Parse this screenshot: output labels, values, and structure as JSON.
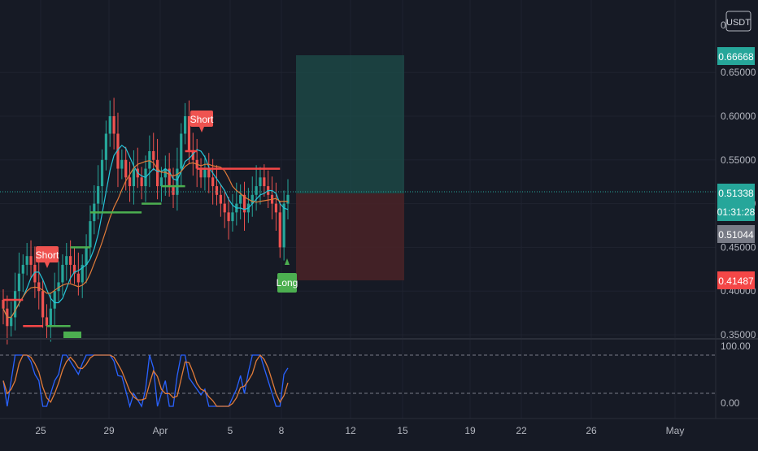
{
  "currency_badge": "USDT",
  "price_axis": {
    "ticks": [
      "0.35000",
      "0.40000",
      "0.45000",
      "0.50000",
      "0.55000",
      "0.60000",
      "0.65000"
    ],
    "top_partial_label": "0"
  },
  "price_badges": {
    "target": "0.66668",
    "current": "0.51338",
    "countdown": "01:31:28",
    "entry": "0.51044",
    "stop": "0.41487"
  },
  "time_axis": {
    "labels": [
      "25",
      "29",
      "Apr",
      "5",
      "8",
      "12",
      "15",
      "19",
      "22",
      "26",
      "May"
    ]
  },
  "oscillator": {
    "labels": [
      "100.00",
      "0.00"
    ],
    "upper_level": 80,
    "lower_level": 20
  },
  "signals": [
    {
      "text": "Short",
      "type": "short"
    },
    {
      "text": "Short",
      "type": "short"
    },
    {
      "text": "Long",
      "type": "long"
    }
  ],
  "colors": {
    "background": "#161a25",
    "up": "#26a69a",
    "down": "#ef5350",
    "trail_green": "#4caf50",
    "trail_red": "#f44747",
    "ma_teal": "#26c6da",
    "ma_orange": "#e07b39",
    "target_zone": "#1e4d4a",
    "stop_zone": "#4a2327"
  },
  "chart_data": {
    "type": "candlestick",
    "y_range": [
      0.34,
      0.68
    ],
    "oscillator_range": [
      0,
      100
    ],
    "current_price": 0.51338,
    "position": {
      "direction": "long",
      "entry": 0.51044,
      "target": 0.66668,
      "stop": 0.41487
    },
    "close_prices": [
      0.38,
      0.36,
      0.37,
      0.4,
      0.42,
      0.43,
      0.44,
      0.43,
      0.41,
      0.4,
      0.37,
      0.36,
      0.38,
      0.4,
      0.41,
      0.43,
      0.44,
      0.43,
      0.42,
      0.41,
      0.43,
      0.45,
      0.48,
      0.5,
      0.52,
      0.55,
      0.58,
      0.6,
      0.58,
      0.54,
      0.55,
      0.53,
      0.52,
      0.54,
      0.53,
      0.52,
      0.54,
      0.56,
      0.55,
      0.52,
      0.53,
      0.54,
      0.52,
      0.51,
      0.54,
      0.58,
      0.6,
      0.56,
      0.55,
      0.54,
      0.53,
      0.54,
      0.53,
      0.52,
      0.51,
      0.5,
      0.49,
      0.48,
      0.49,
      0.5,
      0.51,
      0.49,
      0.5,
      0.51,
      0.52,
      0.53,
      0.52,
      0.51,
      0.5,
      0.49,
      0.45,
      0.5,
      0.51
    ]
  }
}
